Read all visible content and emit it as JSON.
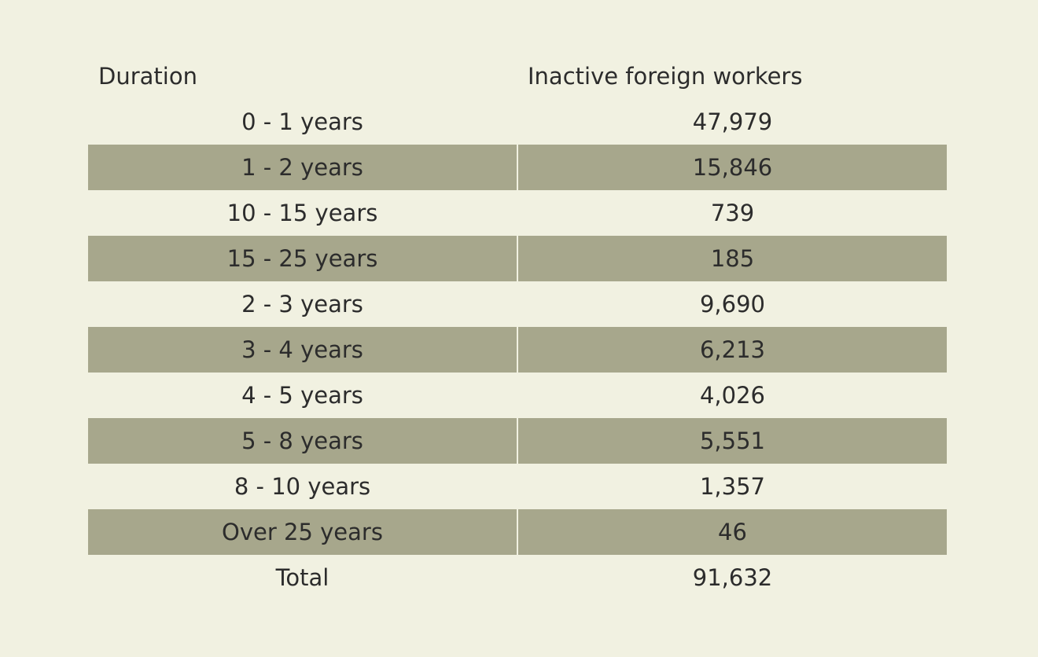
{
  "table": {
    "headers": [
      "Duration",
      "Inactive foreign workers"
    ],
    "rows": [
      {
        "duration": "0 - 1 years",
        "value": "47,979"
      },
      {
        "duration": "1 - 2 years",
        "value": "15,846"
      },
      {
        "duration": "10 - 15 years",
        "value": "739"
      },
      {
        "duration": "15 - 25 years",
        "value": "185"
      },
      {
        "duration": "2 - 3 years",
        "value": "9,690"
      },
      {
        "duration": "3 - 4 years",
        "value": "6,213"
      },
      {
        "duration": "4 - 5 years",
        "value": "4,026"
      },
      {
        "duration": "5 - 8 years",
        "value": "5,551"
      },
      {
        "duration": "8 - 10 years",
        "value": "1,357"
      },
      {
        "duration": "Over 25 years",
        "value": "46"
      },
      {
        "duration": "Total",
        "value": "91,632"
      }
    ]
  },
  "colors": {
    "background": "#f1f1e1",
    "shaded_row": "#a7a78c",
    "text": "#2c2c2c"
  },
  "chart_data": {
    "type": "table",
    "columns": [
      "Duration",
      "Inactive foreign workers"
    ],
    "categories": [
      "0 - 1 years",
      "1 - 2 years",
      "10 - 15 years",
      "15 - 25 years",
      "2 - 3 years",
      "3 - 4 years",
      "4 - 5 years",
      "5 - 8 years",
      "8 - 10 years",
      "Over 25 years",
      "Total"
    ],
    "values": [
      47979,
      15846,
      739,
      185,
      9690,
      6213,
      4026,
      5551,
      1357,
      46,
      91632
    ]
  }
}
